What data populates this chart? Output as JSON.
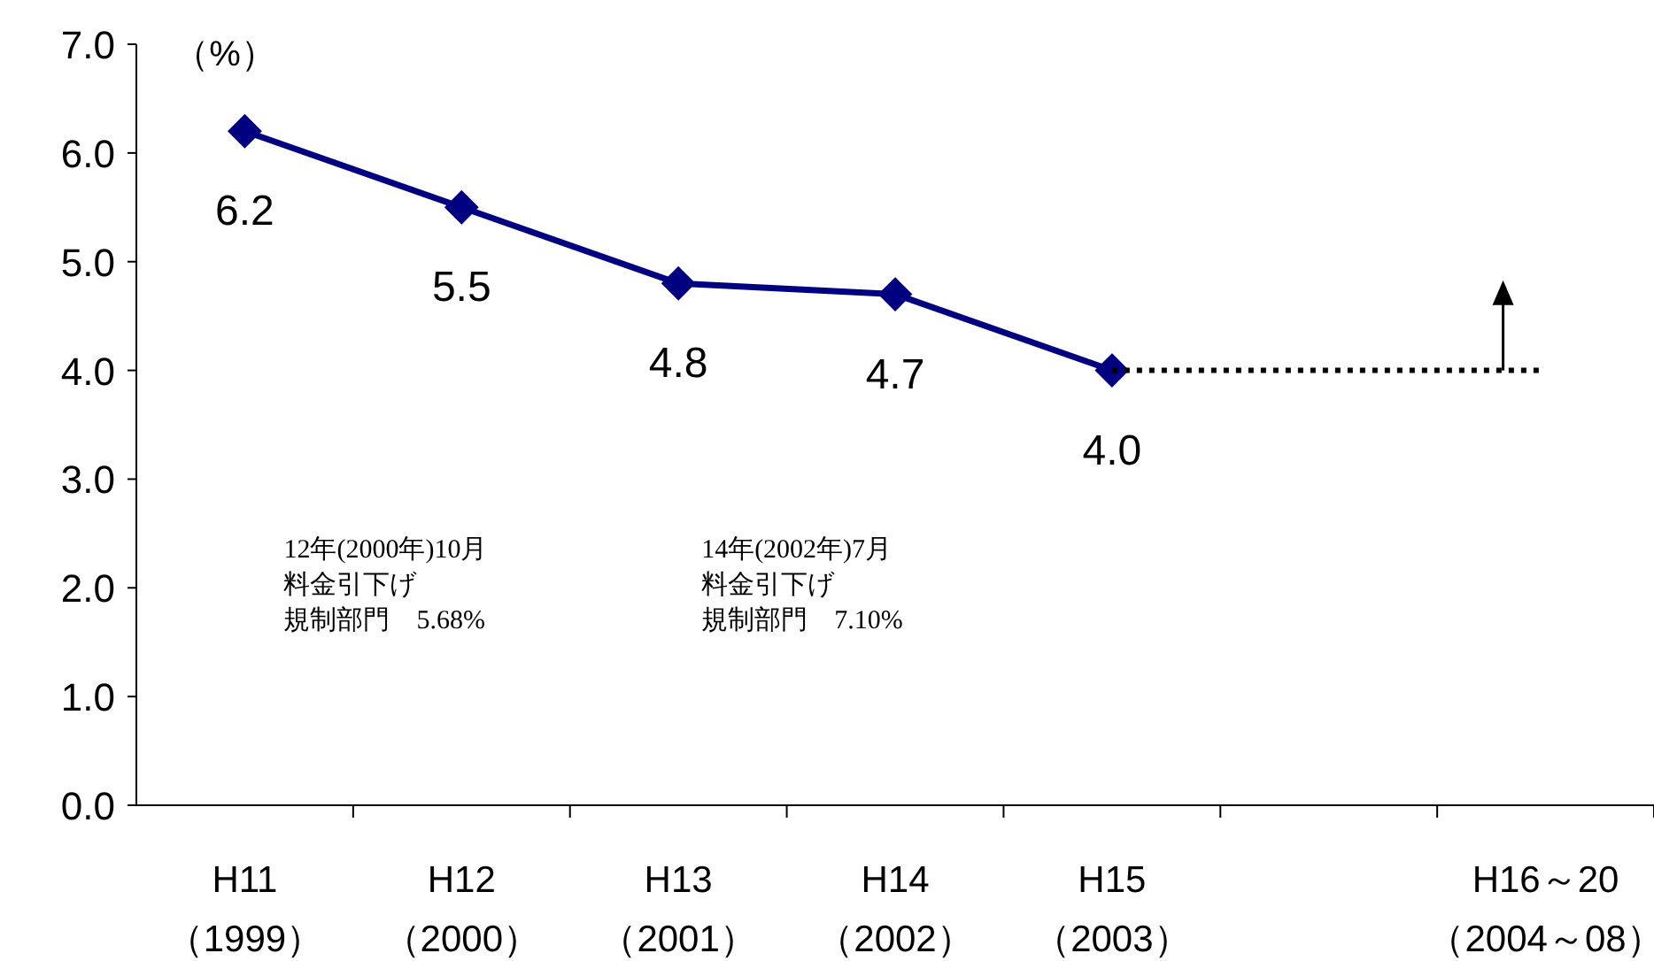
{
  "chart_data": {
    "type": "line",
    "ylabel": "（%）",
    "categories": [
      "H11\n（1999）",
      "H12\n（2000）",
      "H13\n（2001）",
      "H14\n（2002）",
      "H15\n（2003）",
      null,
      "H16～20\n（2004～08）"
    ],
    "series": [
      {
        "color": "#000080",
        "marker": "diamond",
        "line_style": "solid",
        "values": [
          6.2,
          5.5,
          4.8,
          4.7,
          4.0,
          null,
          null
        ],
        "value_labels": [
          "6.2",
          "5.5",
          "4.8",
          "4.7",
          "4.0",
          null,
          null
        ]
      },
      {
        "color": "#000000",
        "marker": "none",
        "line_style": "dotted",
        "values": [
          null,
          null,
          null,
          null,
          4.0,
          4.0,
          4.0
        ]
      }
    ],
    "ylim": [
      0,
      7
    ],
    "yticks": [
      {
        "value": 0,
        "label": "0.0"
      },
      {
        "value": 1,
        "label": "1.0"
      },
      {
        "value": 2,
        "label": "2.0"
      },
      {
        "value": 3,
        "label": "3.0"
      },
      {
        "value": 4,
        "label": "4.0"
      },
      {
        "value": 5,
        "label": "5.0"
      },
      {
        "value": 6,
        "label": "6.0"
      },
      {
        "value": 7,
        "label": "7.0"
      }
    ],
    "annotations": [
      "12年(2000年)10月",
      "料金引下げ",
      "規制部門　5.68%",
      "14年(2002年)7月",
      "料金引下げ",
      "規制部門　7.10%"
    ]
  }
}
